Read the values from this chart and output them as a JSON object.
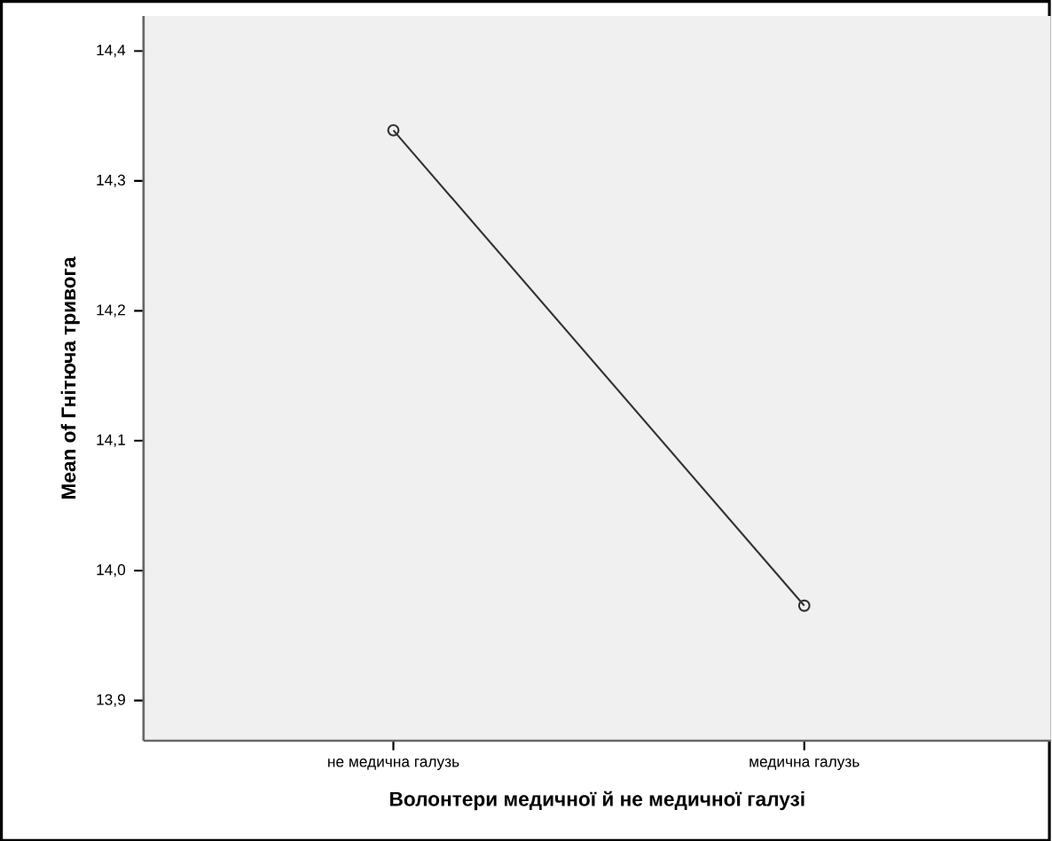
{
  "chart_data": {
    "type": "line",
    "xlabel": "Волонтери медичної й не медичної галузі",
    "ylabel": "Mean of Гнітюча тривога",
    "categories": [
      "не медична галузь",
      "медична галузь"
    ],
    "values": [
      14.339,
      13.973
    ],
    "color": "#333333",
    "marker": "circle",
    "line_style": "solid",
    "ylim": [
      13.869,
      14.427
    ],
    "yticks": [
      {
        "value": 13.9,
        "label": "13,9"
      },
      {
        "value": 14.0,
        "label": "14,0"
      },
      {
        "value": 14.1,
        "label": "14,1"
      },
      {
        "value": 14.2,
        "label": "14,2"
      },
      {
        "value": 14.3,
        "label": "14,3"
      },
      {
        "value": 14.4,
        "label": "14,4"
      }
    ]
  }
}
